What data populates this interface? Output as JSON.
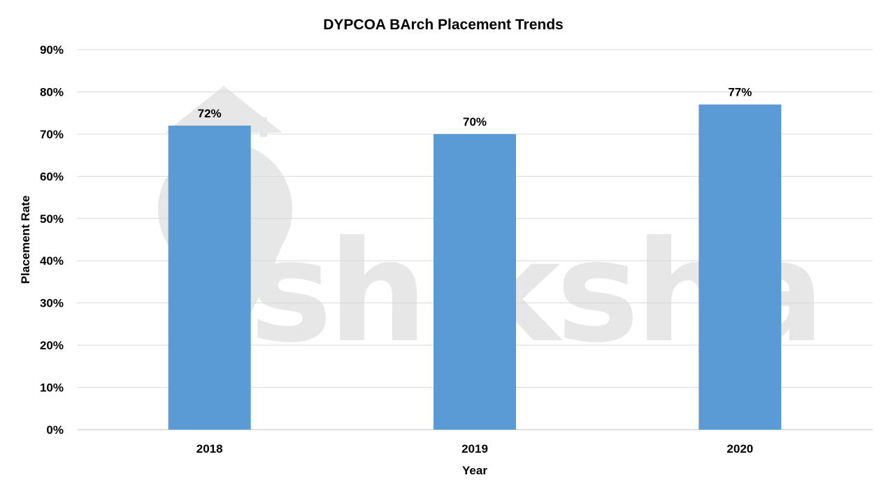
{
  "watermark": {
    "text": "shiksha"
  },
  "chart_data": {
    "type": "bar",
    "title": "DYPCOA BArch Placement Trends",
    "xlabel": "Year",
    "ylabel": "Placement Rate",
    "categories": [
      "2018",
      "2019",
      "2020"
    ],
    "values": [
      72,
      70,
      77
    ],
    "data_labels": [
      "72%",
      "70%",
      "77%"
    ],
    "ylim": [
      0,
      90
    ],
    "yticks": [
      0,
      10,
      20,
      30,
      40,
      50,
      60,
      70,
      80,
      90
    ],
    "ytick_labels": [
      "0%",
      "10%",
      "20%",
      "30%",
      "40%",
      "50%",
      "60%",
      "70%",
      "80%",
      "90%"
    ],
    "grid": true,
    "legend": "none",
    "colors": {
      "bar": "#5b9bd5",
      "grid": "#d9d9d9",
      "text": "#000000"
    }
  }
}
